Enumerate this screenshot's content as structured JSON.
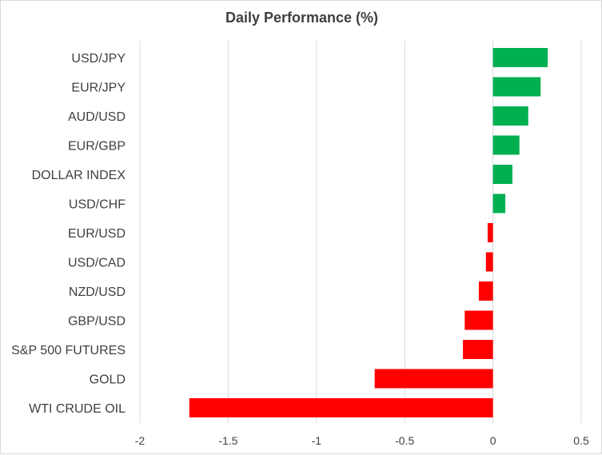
{
  "chart_data": {
    "type": "bar",
    "orientation": "horizontal",
    "title": "Daily Performance (%)",
    "xlabel": "",
    "ylabel": "",
    "categories": [
      "USD/JPY",
      "EUR/JPY",
      "AUD/USD",
      "EUR/GBP",
      "DOLLAR INDEX",
      "USD/CHF",
      "EUR/USD",
      "USD/CAD",
      "NZD/USD",
      "GBP/USD",
      "S&P 500 FUTURES",
      "GOLD",
      "WTI CRUDE OIL"
    ],
    "values": [
      0.31,
      0.27,
      0.2,
      0.15,
      0.11,
      0.07,
      -0.03,
      -0.04,
      -0.08,
      -0.16,
      -0.17,
      -0.67,
      -1.72
    ],
    "xlim": [
      -2,
      0.5
    ],
    "x_ticks": [
      "-2",
      "-1.5",
      "-1",
      "-0.5",
      "0",
      "0.5"
    ],
    "grid": true,
    "legend": "none",
    "colors": {
      "positive": "#00b050",
      "negative": "#ff0000"
    }
  }
}
